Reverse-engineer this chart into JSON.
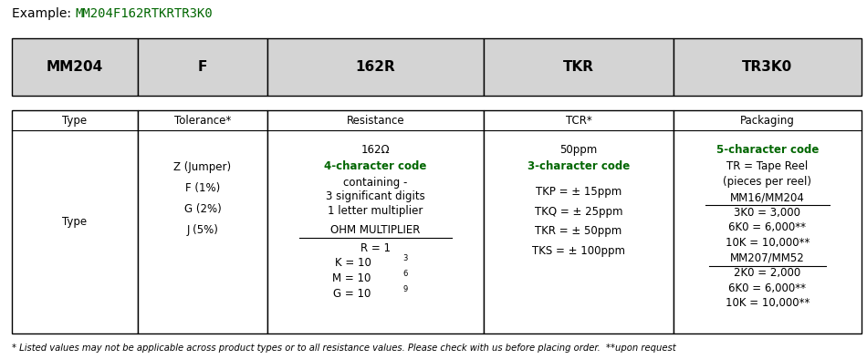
{
  "title_prefix": "Example: ",
  "title_code": "MM204F162RTKRTR3K0",
  "header_labels": [
    "MM204",
    "F",
    "162R",
    "TKR",
    "TR3K0"
  ],
  "col_labels": [
    "Type",
    "Tolerance*",
    "Resistance",
    "TCR*",
    "Packaging"
  ],
  "header_bg": "#d4d4d4",
  "border_color": "#000000",
  "green": "#006600",
  "footer": "* Listed values may not be applicable across product types or to all resistance values. Please check with us before placing order.  **upon request",
  "col_starts": [
    0.012,
    0.158,
    0.308,
    0.558,
    0.778
  ],
  "col_ends": [
    0.158,
    0.308,
    0.558,
    0.778,
    0.995
  ]
}
